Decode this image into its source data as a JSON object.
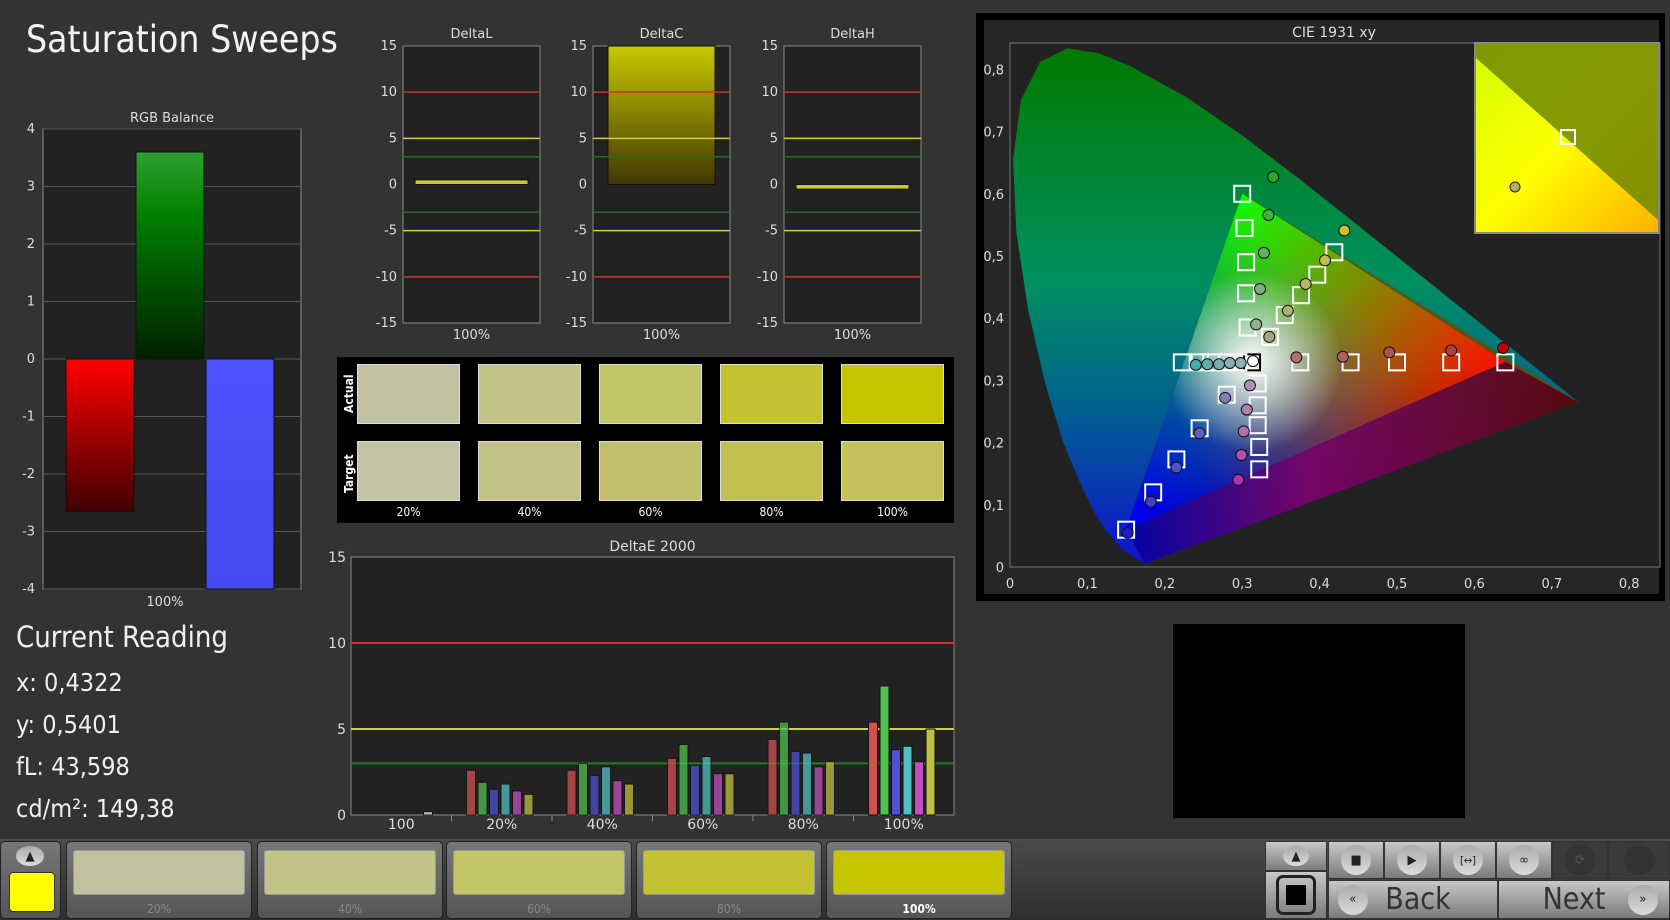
{
  "title": "Saturation Sweeps",
  "rgb_balance": {
    "title": "RGB Balance",
    "ylim": [
      -4,
      4
    ],
    "ticks": [
      "4",
      "3",
      "2",
      "1",
      "0",
      "-1",
      "-2",
      "-3",
      "-4"
    ],
    "xlabel": "100%",
    "values": {
      "red": -2.65,
      "green": 3.6,
      "blue": -4
    }
  },
  "delta_charts": [
    {
      "title": "DeltaL",
      "xlabel": "100%",
      "value": 0.5
    },
    {
      "title": "DeltaC",
      "xlabel": "100%",
      "value": 15
    },
    {
      "title": "DeltaH",
      "xlabel": "100%",
      "value": -0.5
    }
  ],
  "delta_ticks": [
    "15",
    "10",
    "5",
    "0",
    "-5",
    "-10",
    "-15"
  ],
  "swatches": {
    "row_labels": [
      "Actual",
      "Target"
    ],
    "labels": [
      "20%",
      "40%",
      "60%",
      "80%",
      "100%"
    ],
    "actual": [
      "#c2c2a2",
      "#c2c387",
      "#c2c465",
      "#c2c233",
      "#c6c600"
    ],
    "target": [
      "#c2c2a4",
      "#c2c288",
      "#c2c06c",
      "#c2c04e",
      "#c4c05c"
    ]
  },
  "current_reading": {
    "title": "Current Reading",
    "x": "x: 0,4322",
    "y": "y: 0,5401",
    "fl": "fL: 43,598",
    "cdm2": "cd/m²: 149,38"
  },
  "chart_data": [
    {
      "type": "bar",
      "title": "DeltaE 2000",
      "ylim": [
        0,
        15
      ],
      "yticks": [
        "15",
        "10",
        "5",
        "0"
      ],
      "categories": [
        "100",
        "20%",
        "40%",
        "60%",
        "80%",
        "100%"
      ],
      "thresholds": [
        {
          "value": 10,
          "color": "#d03030"
        },
        {
          "value": 5,
          "color": "#d0d040"
        },
        {
          "value": 3,
          "color": "#208020"
        }
      ],
      "series_colors": [
        "#d05050",
        "#50c050",
        "#5050d0",
        "#50c0c0",
        "#c050c0",
        "#c0c040"
      ],
      "groups": [
        [
          0,
          0,
          0,
          0,
          0,
          0.2
        ],
        [
          2.6,
          1.9,
          1.5,
          1.8,
          1.4,
          1.2
        ],
        [
          2.6,
          3.0,
          2.3,
          2.8,
          2.0,
          1.8
        ],
        [
          3.3,
          4.1,
          2.9,
          3.4,
          2.4,
          2.4
        ],
        [
          4.4,
          5.4,
          3.7,
          3.6,
          2.8,
          3.1
        ],
        [
          5.4,
          7.5,
          3.8,
          4.0,
          3.1,
          5.0
        ]
      ]
    },
    {
      "type": "scatter",
      "title": "CIE 1931 xy",
      "xlim": [
        0,
        0.85
      ],
      "ylim": [
        0,
        0.84
      ],
      "xticks": [
        "0",
        "0,1",
        "0,2",
        "0,3",
        "0,4",
        "0,5",
        "0,6",
        "0,7",
        "0,8"
      ],
      "yticks": [
        "0",
        "0,1",
        "0,2",
        "0,3",
        "0,4",
        "0,5",
        "0,6",
        "0,7",
        "0,8"
      ],
      "gamut": [
        [
          0.64,
          0.33
        ],
        [
          0.3,
          0.6
        ],
        [
          0.15,
          0.06
        ]
      ],
      "targets": [
        [
          0.3127,
          0.329
        ],
        [
          0.375,
          0.329
        ],
        [
          0.44,
          0.329
        ],
        [
          0.5,
          0.329
        ],
        [
          0.57,
          0.329
        ],
        [
          0.64,
          0.329
        ],
        [
          0.307,
          0.385
        ],
        [
          0.305,
          0.44
        ],
        [
          0.305,
          0.49
        ],
        [
          0.303,
          0.545
        ],
        [
          0.3,
          0.6
        ],
        [
          0.28,
          0.277
        ],
        [
          0.245,
          0.223
        ],
        [
          0.215,
          0.173
        ],
        [
          0.185,
          0.12
        ],
        [
          0.15,
          0.06
        ],
        [
          0.295,
          0.329
        ],
        [
          0.28,
          0.329
        ],
        [
          0.26,
          0.329
        ],
        [
          0.245,
          0.329
        ],
        [
          0.222,
          0.329
        ],
        [
          0.32,
          0.295
        ],
        [
          0.32,
          0.26
        ],
        [
          0.32,
          0.228
        ],
        [
          0.322,
          0.193
        ],
        [
          0.322,
          0.157
        ],
        [
          0.336,
          0.37
        ],
        [
          0.355,
          0.405
        ],
        [
          0.376,
          0.437
        ],
        [
          0.397,
          0.47
        ],
        [
          0.419,
          0.506
        ]
      ],
      "measured": [
        {
          "p": [
            0.314,
            0.331
          ],
          "c": "#ffffff"
        },
        {
          "p": [
            0.37,
            0.337
          ],
          "c": "#b07070"
        },
        {
          "p": [
            0.43,
            0.338
          ],
          "c": "#b06060"
        },
        {
          "p": [
            0.49,
            0.345
          ],
          "c": "#b05050"
        },
        {
          "p": [
            0.57,
            0.348
          ],
          "c": "#b04040"
        },
        {
          "p": [
            0.637,
            0.352
          ],
          "c": "#c00000"
        },
        {
          "p": [
            0.318,
            0.39
          ],
          "c": "#90b090"
        },
        {
          "p": [
            0.323,
            0.447
          ],
          "c": "#80b080"
        },
        {
          "p": [
            0.328,
            0.505
          ],
          "c": "#60b060"
        },
        {
          "p": [
            0.334,
            0.566
          ],
          "c": "#40b040"
        },
        {
          "p": [
            0.34,
            0.627
          ],
          "c": "#20b020"
        },
        {
          "p": [
            0.278,
            0.272
          ],
          "c": "#8080b0"
        },
        {
          "p": [
            0.245,
            0.215
          ],
          "c": "#6060c0"
        },
        {
          "p": [
            0.215,
            0.16
          ],
          "c": "#5050c0"
        },
        {
          "p": [
            0.182,
            0.105
          ],
          "c": "#4040c0"
        },
        {
          "p": [
            0.152,
            0.055
          ],
          "c": "#2020c0"
        },
        {
          "p": [
            0.298,
            0.328
          ],
          "c": "#90b0b0"
        },
        {
          "p": [
            0.284,
            0.328
          ],
          "c": "#80b0b0"
        },
        {
          "p": [
            0.27,
            0.326
          ],
          "c": "#70b0b0"
        },
        {
          "p": [
            0.255,
            0.326
          ],
          "c": "#60b0b0"
        },
        {
          "p": [
            0.24,
            0.325
          ],
          "c": "#40b0b0"
        },
        {
          "p": [
            0.31,
            0.292
          ],
          "c": "#b090b0"
        },
        {
          "p": [
            0.306,
            0.253
          ],
          "c": "#b080b0"
        },
        {
          "p": [
            0.302,
            0.218
          ],
          "c": "#b070b0"
        },
        {
          "p": [
            0.299,
            0.18
          ],
          "c": "#b050b0"
        },
        {
          "p": [
            0.295,
            0.14
          ],
          "c": "#b030b0"
        },
        {
          "p": [
            0.335,
            0.37
          ],
          "c": "#a8a880"
        },
        {
          "p": [
            0.359,
            0.412
          ],
          "c": "#b0b070"
        },
        {
          "p": [
            0.382,
            0.455
          ],
          "c": "#b8b860"
        },
        {
          "p": [
            0.407,
            0.493
          ],
          "c": "#c0c050"
        },
        {
          "p": [
            0.432,
            0.541
          ],
          "c": "#c8c030"
        }
      ]
    }
  ],
  "bottom": {
    "selected_color": "#ffff00",
    "swatches": [
      {
        "label": "20%",
        "color": "#c2c2a2"
      },
      {
        "label": "40%",
        "color": "#c2c387"
      },
      {
        "label": "60%",
        "color": "#c2c465"
      },
      {
        "label": "80%",
        "color": "#c2c233"
      },
      {
        "label": "100%",
        "color": "#c6c600"
      }
    ],
    "back_label": "Back",
    "next_label": "Next",
    "back_icon": "«",
    "next_icon": "»"
  }
}
